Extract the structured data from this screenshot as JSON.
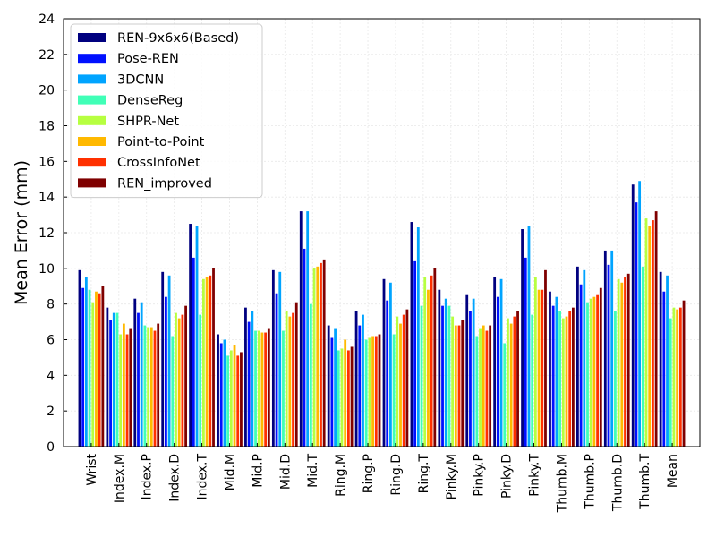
{
  "chart_data": {
    "type": "bar",
    "title": "",
    "xlabel": "",
    "ylabel": "Mean Error (mm)",
    "ylim": [
      0,
      24
    ],
    "yticks": [
      0,
      2,
      4,
      6,
      8,
      10,
      12,
      14,
      16,
      18,
      20,
      22,
      24
    ],
    "grid": true,
    "legend_position": "top-left",
    "categories": [
      "Wrist",
      "Index.M",
      "Index.P",
      "Index.D",
      "Index.T",
      "Mid.M",
      "Mid.P",
      "Mid.D",
      "Mid.T",
      "Ring.M",
      "Ring.P",
      "Ring.D",
      "Ring.T",
      "Pinky.M",
      "Pinky.P",
      "Pinky.D",
      "Pinky.T",
      "Thumb.M",
      "Thumb.P",
      "Thumb.D",
      "Thumb.T",
      "Mean"
    ],
    "series": [
      {
        "name": "REN-9x6x6(Based)",
        "color": "#00007f",
        "values": [
          9.9,
          7.8,
          8.3,
          9.8,
          12.5,
          6.3,
          7.8,
          9.9,
          13.2,
          6.8,
          7.6,
          9.4,
          12.6,
          8.8,
          8.5,
          9.5,
          12.2,
          8.7,
          10.1,
          11.0,
          14.7,
          9.8
        ]
      },
      {
        "name": "Pose-REN",
        "color": "#0010ff",
        "values": [
          8.9,
          7.1,
          7.5,
          8.4,
          10.6,
          5.8,
          7.0,
          8.6,
          11.1,
          6.1,
          6.8,
          8.2,
          10.4,
          7.9,
          7.6,
          8.4,
          10.6,
          7.9,
          9.1,
          10.2,
          13.7,
          8.7
        ]
      },
      {
        "name": "3DCNN",
        "color": "#00a4ff",
        "values": [
          9.5,
          7.5,
          8.1,
          9.6,
          12.4,
          6.0,
          7.6,
          9.8,
          13.2,
          6.6,
          7.4,
          9.2,
          12.3,
          8.3,
          8.3,
          9.4,
          12.4,
          8.4,
          9.9,
          11.0,
          14.9,
          9.6
        ]
      },
      {
        "name": "DenseReg",
        "color": "#40ffb7",
        "values": [
          8.8,
          7.5,
          6.8,
          6.2,
          7.4,
          5.1,
          6.5,
          6.5,
          8.0,
          5.4,
          6.0,
          6.3,
          7.9,
          7.9,
          6.2,
          5.8,
          7.4,
          7.6,
          8.1,
          7.6,
          10.1,
          7.2
        ]
      },
      {
        "name": "SHPR-Net",
        "color": "#b7ff40",
        "values": [
          8.1,
          6.3,
          6.7,
          7.5,
          9.4,
          5.4,
          6.5,
          7.6,
          10.0,
          5.5,
          6.1,
          7.3,
          9.5,
          7.3,
          6.6,
          7.2,
          9.5,
          7.2,
          8.3,
          9.4,
          12.8,
          7.8
        ]
      },
      {
        "name": "Point-to-Point",
        "color": "#ffb900",
        "values": [
          8.7,
          6.9,
          6.7,
          7.2,
          9.5,
          5.7,
          6.4,
          7.3,
          10.1,
          6.0,
          6.2,
          6.9,
          8.8,
          6.8,
          6.8,
          6.9,
          8.8,
          7.3,
          8.4,
          9.2,
          12.4,
          7.7
        ]
      },
      {
        "name": "CrossInfoNet",
        "color": "#ff3000",
        "values": [
          8.6,
          6.3,
          6.5,
          7.4,
          9.6,
          5.1,
          6.4,
          7.5,
          10.3,
          5.4,
          6.2,
          7.4,
          9.6,
          6.8,
          6.5,
          7.3,
          8.8,
          7.6,
          8.5,
          9.5,
          12.7,
          7.8
        ]
      },
      {
        "name": "REN_improved",
        "color": "#7f0000",
        "values": [
          9.0,
          6.6,
          6.9,
          7.9,
          10.0,
          5.3,
          6.6,
          8.1,
          10.5,
          5.6,
          6.3,
          7.7,
          10.0,
          7.1,
          6.8,
          7.6,
          9.9,
          7.8,
          8.9,
          9.7,
          13.2,
          8.2
        ]
      }
    ]
  }
}
